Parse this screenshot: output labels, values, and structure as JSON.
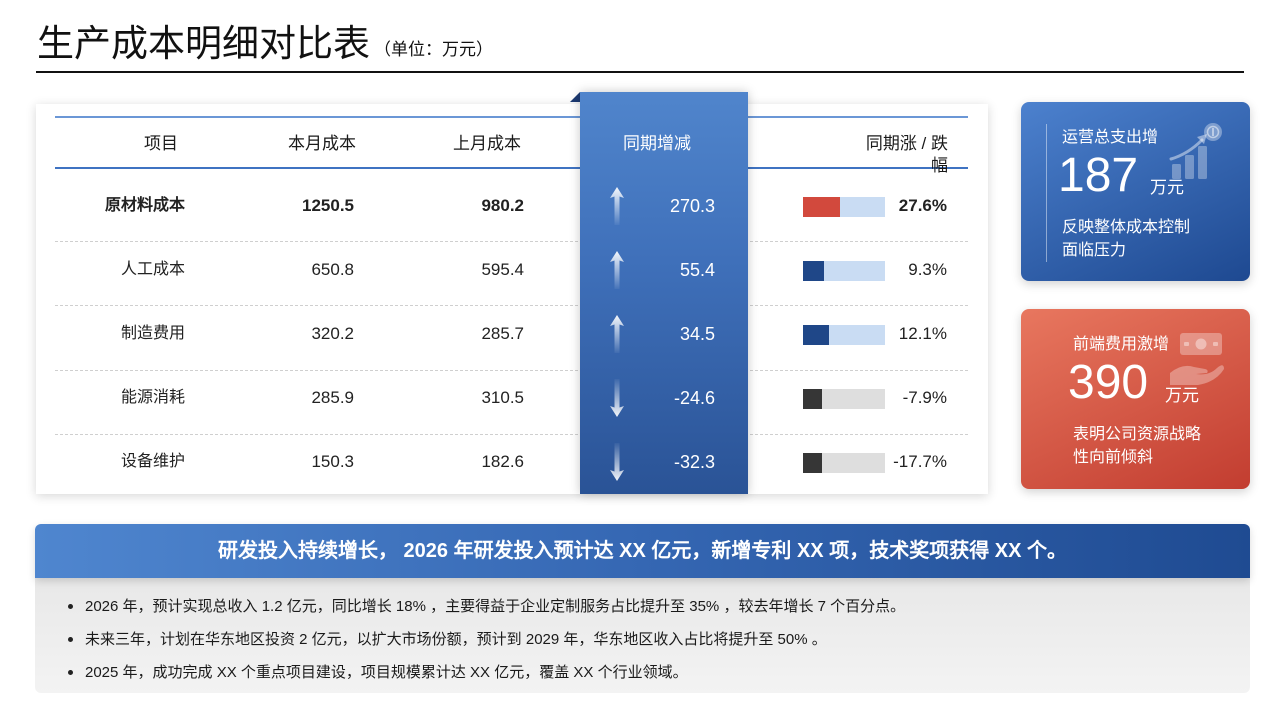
{
  "header": {
    "title": "生产成本明细对比表",
    "unit": "（单位：万元）"
  },
  "table": {
    "columns": [
      "项目",
      "本月成本",
      "上月成本",
      "同期增减",
      "同期涨 / 跌幅"
    ],
    "rows": [
      {
        "item": "原材料成本",
        "current": "1250.5",
        "previous": "980.2",
        "change": "270.3",
        "arrow_icon": "arrow-up-icon",
        "pct": "27.6%",
        "bar_level": 0.45,
        "bar_color": "#d2493d",
        "track_color": "#c9dcf3"
      },
      {
        "item": "人工成本",
        "current": "650.8",
        "previous": "595.4",
        "change": "55.4",
        "arrow_icon": "arrow-up-icon",
        "pct": "9.3%",
        "bar_level": 0.26,
        "bar_color": "#1f4788",
        "track_color": "#c9dcf3"
      },
      {
        "item": "制造费用",
        "current": "320.2",
        "previous": "285.7",
        "change": "34.5",
        "arrow_icon": "arrow-up-icon",
        "pct": "12.1%",
        "bar_level": 0.32,
        "bar_color": "#1f4788",
        "track_color": "#c9dcf3"
      },
      {
        "item": "能源消耗",
        "current": "285.9",
        "previous": "310.5",
        "change": "-24.6",
        "arrow_icon": "arrow-down-icon",
        "pct": "-7.9%",
        "bar_level": 0.23,
        "bar_color": "#363636",
        "track_color": "#dedede"
      },
      {
        "item": "设备维护",
        "current": "150.3",
        "previous": "182.6",
        "change": "-32.3",
        "arrow_icon": "arrow-down-icon",
        "pct": "-17.7%",
        "bar_level": 0.23,
        "bar_color": "#363636",
        "track_color": "#dedede"
      }
    ]
  },
  "kpi_cards": [
    {
      "label": "运营总支出增",
      "value": "187",
      "unit": "万元",
      "note": "反映整体成本控制面临压力",
      "icon": "growth-chart-icon",
      "color_start": "#4c81ce",
      "color_end": "#1e4991"
    },
    {
      "label": "前端费用激增",
      "value": "390",
      "unit": "万元",
      "note": "表明公司资源战略性向前倾斜",
      "icon": "money-hand-icon",
      "color_start": "#e8775f",
      "color_end": "#c23d30"
    }
  ],
  "summary": {
    "headline": "研发投入持续增长， 2026 年研发投入预计达 XX 亿元，新增专利 XX 项，技术奖项获得 XX 个。",
    "bullets": [
      "2026 年，预计实现总收入 1.2 亿元，同比增长 18% ，主要得益于企业定制服务占比提升至 35% ，较去年增长 7 个百分点。",
      "未来三年，计划在华东地区投资 2 亿元，以扩大市场份额，预计到 2029 年，华东地区收入占比将提升至 50% 。",
      "2025 年，成功完成 XX 个重点项目建设，项目规模累计达 XX 亿元，覆盖 XX 个行业领域。"
    ]
  },
  "colors": {
    "accent_blue": "#3f70ba",
    "accent_red": "#d2493d",
    "title_rule": "#111111"
  }
}
